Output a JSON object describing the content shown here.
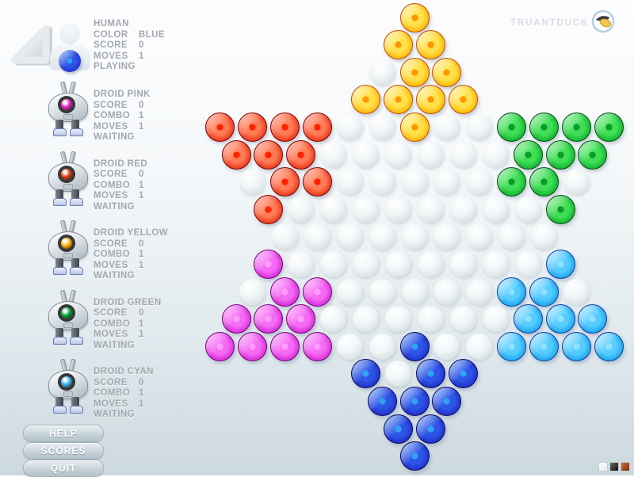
{
  "header": {
    "brand": "TRUANTDUCK"
  },
  "sidebar": {
    "players": [
      {
        "id": "human",
        "kind": "human",
        "name": "HUMAN",
        "stats": [
          [
            "COLOR",
            "BLUE"
          ],
          [
            "SCORE",
            "0"
          ],
          [
            "MOVES",
            "1"
          ]
        ],
        "status": "PLAYING",
        "marble": "B"
      },
      {
        "id": "droid-pink",
        "kind": "droid",
        "name": "DROID PINK",
        "stats": [
          [
            "SCORE",
            "0"
          ],
          [
            "COMBO",
            "1"
          ],
          [
            "MOVES",
            "1"
          ]
        ],
        "status": "WAITING",
        "eye": "#e820c8"
      },
      {
        "id": "droid-red",
        "kind": "droid",
        "name": "DROID RED",
        "stats": [
          [
            "SCORE",
            "0"
          ],
          [
            "COMBO",
            "1"
          ],
          [
            "MOVES",
            "1"
          ]
        ],
        "status": "WAITING",
        "eye": "#e8380e"
      },
      {
        "id": "droid-yellow",
        "kind": "droid",
        "name": "DROID YELLOW",
        "stats": [
          [
            "SCORE",
            "0"
          ],
          [
            "COMBO",
            "1"
          ],
          [
            "MOVES",
            "1"
          ]
        ],
        "status": "WAITING",
        "eye": "#ffb400"
      },
      {
        "id": "droid-green",
        "kind": "droid",
        "name": "DROID GREEN",
        "stats": [
          [
            "SCORE",
            "0"
          ],
          [
            "COMBO",
            "1"
          ],
          [
            "MOVES",
            "1"
          ]
        ],
        "status": "WAITING",
        "eye": "#00a838"
      },
      {
        "id": "droid-cyan",
        "kind": "droid",
        "name": "DROID CYAN",
        "stats": [
          [
            "SCORE",
            "0"
          ],
          [
            "COMBO",
            "1"
          ],
          [
            "MOVES",
            "1"
          ]
        ],
        "status": "WAITING",
        "eye": "#38b4f0"
      }
    ]
  },
  "menu": {
    "buttons": [
      {
        "id": "help",
        "label": "HELP"
      },
      {
        "id": "scores",
        "label": "SCORES"
      },
      {
        "id": "quit",
        "label": "QUIT"
      }
    ]
  },
  "board": {
    "rows": [
      "Y",
      "YY",
      "WYY",
      "YYYY",
      "RRRRWWYWWGGGG",
      "RRRWWWWWWGGG",
      "WRRWWWWWGGW",
      "RWWWWWWWWG",
      "WWWWWWWWW",
      "PWWWWWWWWC",
      "WPPWWWWWCCW",
      "PPPWWWWWWCCC",
      "PPPPWWBWWCCCC",
      "BWBB",
      "BBB",
      "BB",
      "B"
    ],
    "palette": {
      "Y": {
        "name": "yellow",
        "body": "#ffe14a",
        "mid": "#ffb400",
        "rim": "#e55f00",
        "edge": "#c44a00",
        "center": "#ff9500",
        "hi": "rgba(255,255,225,0.95)"
      },
      "R": {
        "name": "red",
        "body": "#ff7a55",
        "mid": "#e63218",
        "rim": "#9b0400",
        "edge": "#870000",
        "center": "#ff2000",
        "hi": "rgba(255,218,205,0.95)"
      },
      "G": {
        "name": "green",
        "body": "#3fdf55",
        "mid": "#0faf2e",
        "rim": "#046414",
        "edge": "#035010",
        "center": "#0c9a28",
        "hi": "rgba(222,255,225,0.9)"
      },
      "P": {
        "name": "magenta",
        "body": "#f56af5",
        "mid": "#d428d4",
        "rim": "#8c068c",
        "edge": "#7a0080",
        "center": "#ff9dff",
        "hi": "rgba(255,226,255,0.95)"
      },
      "C": {
        "name": "cyan",
        "body": "#55ccff",
        "mid": "#18a2ec",
        "rim": "#0b50bb",
        "edge": "#0a3fa6",
        "center": "#8fe2ff",
        "hi": "rgba(235,250,255,0.95)"
      },
      "B": {
        "name": "blue",
        "body": "#2e54e8",
        "mid": "#1f2fc4",
        "rim": "#140a8a",
        "edge": "#0d0668",
        "center": "#2fa2f2",
        "hi": "rgba(205,235,255,0.9)"
      },
      "W": {
        "name": "empty"
      }
    }
  },
  "theme_swatches": [
    {
      "id": "white",
      "color1": "#fbfcfd",
      "color2": "#e9eef1"
    },
    {
      "id": "black",
      "color1": "#6a6a6a",
      "color2": "#0c0c0c"
    },
    {
      "id": "red",
      "color1": "#cf6a3a",
      "color2": "#7e2a10"
    }
  ]
}
